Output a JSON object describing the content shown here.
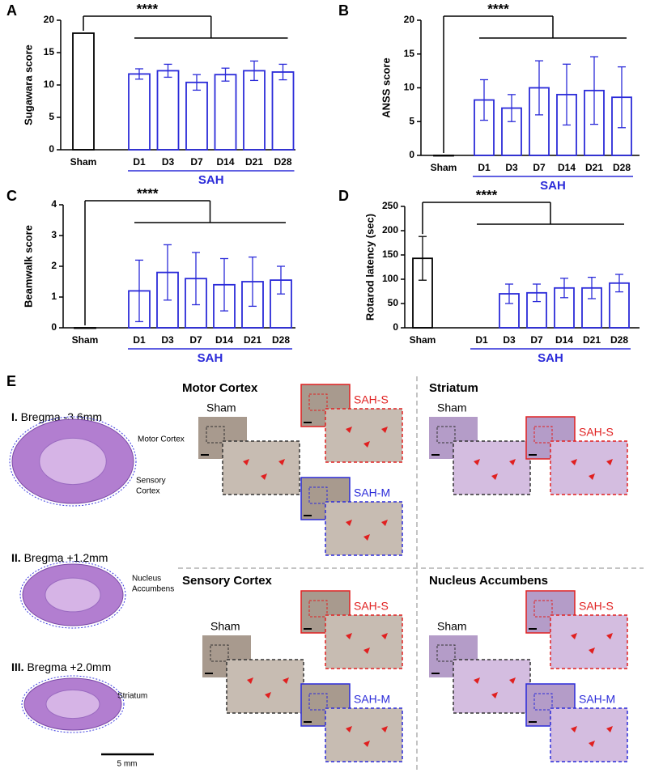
{
  "chart_data": [
    {
      "type": "bar",
      "panel": "A",
      "y_label": "Sugawara score",
      "categories": [
        "Sham",
        "D1",
        "D3",
        "D7",
        "D14",
        "D21",
        "D28"
      ],
      "values": [
        18,
        11.7,
        12.2,
        10.4,
        11.6,
        12.2,
        12
      ],
      "errors": [
        0,
        0.8,
        1.0,
        1.2,
        1.0,
        1.5,
        1.2
      ],
      "colors": [
        "#000000",
        "#2b2bd9",
        "#2b2bd9",
        "#2b2bd9",
        "#2b2bd9",
        "#2b2bd9",
        "#2b2bd9"
      ],
      "ylim": [
        0,
        20
      ],
      "yticks": [
        0,
        5,
        10,
        15,
        20
      ],
      "group_label": "SAH",
      "group_color": "#2b2bd9",
      "significance": "****"
    },
    {
      "type": "bar",
      "panel": "B",
      "y_label": "ANSS score",
      "categories": [
        "Sham",
        "D1",
        "D3",
        "D7",
        "D14",
        "D21",
        "D28"
      ],
      "values": [
        0,
        8.2,
        7,
        10,
        9,
        9.6,
        8.6
      ],
      "errors": [
        0,
        3,
        2,
        4,
        4.5,
        5,
        4.5
      ],
      "colors": [
        "#000000",
        "#2b2bd9",
        "#2b2bd9",
        "#2b2bd9",
        "#2b2bd9",
        "#2b2bd9",
        "#2b2bd9"
      ],
      "ylim": [
        0,
        20
      ],
      "yticks": [
        0,
        5,
        10,
        15,
        20
      ],
      "group_label": "SAH",
      "group_color": "#2b2bd9",
      "significance": "****"
    },
    {
      "type": "bar",
      "panel": "C",
      "y_label": "Beamwalk score",
      "categories": [
        "Sham",
        "D1",
        "D3",
        "D7",
        "D14",
        "D21",
        "D28"
      ],
      "values": [
        0,
        1.2,
        1.8,
        1.6,
        1.4,
        1.5,
        1.55
      ],
      "errors": [
        0,
        1.0,
        0.9,
        0.85,
        0.85,
        0.8,
        0.45
      ],
      "colors": [
        "#000000",
        "#2b2bd9",
        "#2b2bd9",
        "#2b2bd9",
        "#2b2bd9",
        "#2b2bd9",
        "#2b2bd9"
      ],
      "ylim": [
        0,
        4
      ],
      "yticks": [
        0,
        1,
        2,
        3,
        4
      ],
      "group_label": "SAH",
      "group_color": "#2b2bd9",
      "significance": "****"
    },
    {
      "type": "bar",
      "panel": "D",
      "y_label": "Rotarod latency (sec)",
      "categories": [
        "Sham",
        "D1",
        "D3",
        "D7",
        "D14",
        "D21",
        "D28"
      ],
      "values": [
        143,
        null,
        70,
        72,
        82,
        82,
        92
      ],
      "errors": [
        45,
        null,
        20,
        18,
        20,
        22,
        18
      ],
      "colors": [
        "#000000",
        "#2b2bd9",
        "#2b2bd9",
        "#2b2bd9",
        "#2b2bd9",
        "#2b2bd9",
        "#2b2bd9"
      ],
      "ylim": [
        0,
        250
      ],
      "yticks": [
        0,
        50,
        100,
        150,
        200,
        250
      ],
      "group_label": "SAH",
      "group_color": "#2b2bd9",
      "significance": "****"
    }
  ],
  "panel_e": {
    "letter": "E",
    "brains": [
      {
        "title_num": "I.",
        "title": "Bregma -3.6mm",
        "labels": [
          "Motor Cortex",
          "Sensory",
          "Cortex"
        ]
      },
      {
        "title_num": "II.",
        "title": "Bregma +1.2mm",
        "labels": [
          "Nucleus",
          "Accumbens"
        ]
      },
      {
        "title_num": "III.",
        "title": "Bregma +2.0mm",
        "labels": [
          "Striatum"
        ]
      }
    ],
    "scale_bar": "5 mm",
    "regions": [
      {
        "title": "Motor Cortex",
        "groups": [
          "Sham",
          "SAH-S",
          "SAH-M"
        ]
      },
      {
        "title": "Striatum",
        "groups": [
          "Sham",
          "SAH-S"
        ]
      },
      {
        "title": "Sensory Cortex",
        "groups": [
          "Sham",
          "SAH-S",
          "SAH-M"
        ]
      },
      {
        "title": "Nucleus Accumbens",
        "groups": [
          "Sham",
          "SAH-S",
          "SAH-M"
        ]
      }
    ]
  }
}
